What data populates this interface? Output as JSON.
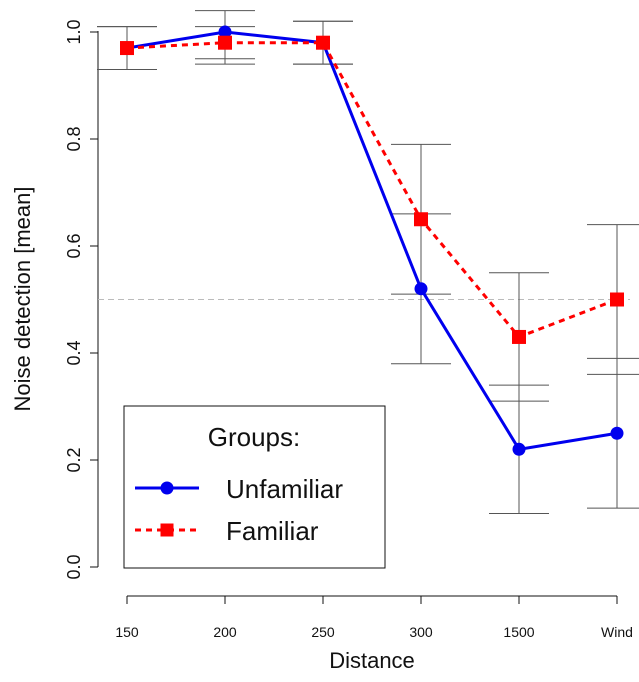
{
  "chart_data": {
    "type": "line",
    "xlabel": "Distance",
    "ylabel": "Noise detection [mean]",
    "categories": [
      "150",
      "200",
      "250",
      "300",
      "1500",
      "Wind"
    ],
    "yticks": [
      "0.0",
      "0.2",
      "0.4",
      "0.6",
      "0.8",
      "1.0"
    ],
    "ylim": [
      0,
      1
    ],
    "reference_line": 0.5,
    "legend": {
      "title": "Groups:",
      "placement": "bottom-left"
    },
    "series": [
      {
        "name": "Unfamiliar",
        "color": "#0000ee",
        "line_style": "solid",
        "marker": "circle",
        "values": [
          0.97,
          1.0,
          0.98,
          0.52,
          0.22,
          0.25
        ],
        "error_low": [
          0.93,
          0.94,
          0.94,
          0.38,
          0.1,
          0.11
        ],
        "error_high": [
          1.01,
          1.04,
          1.02,
          0.66,
          0.34,
          0.39
        ]
      },
      {
        "name": "Familiar",
        "color": "#ff0000",
        "line_style": "dashed",
        "marker": "square",
        "values": [
          0.97,
          0.98,
          0.98,
          0.65,
          0.43,
          0.5
        ],
        "error_low": [
          0.93,
          0.95,
          0.94,
          0.51,
          0.31,
          0.36
        ],
        "error_high": [
          1.01,
          1.01,
          1.02,
          0.79,
          0.55,
          0.64
        ]
      }
    ]
  }
}
